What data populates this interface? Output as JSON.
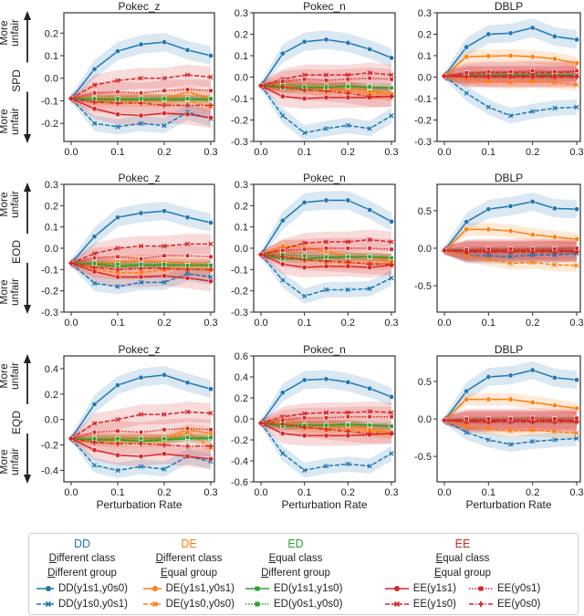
{
  "chart_data": {
    "type": "line",
    "x": [
      0.0,
      0.05,
      0.1,
      0.15,
      0.2,
      0.25,
      0.3
    ],
    "xlabel": "Perturbation Rate",
    "xticks": [
      "0.0",
      "0.1",
      "0.2",
      "0.3"
    ],
    "row_labels": [
      {
        "metric": "SPD",
        "up": "More unfair",
        "down": "More unfair"
      },
      {
        "metric": "EOD",
        "up": "More unfair",
        "down": "More unfair"
      },
      {
        "metric": "EQD",
        "up": "More unfair",
        "down": "More unfair"
      }
    ],
    "series_style": [
      {
        "key": "DD1",
        "color": "#1f77b4",
        "dash": "solid",
        "marker": "circle"
      },
      {
        "key": "DD2",
        "color": "#1f77b4",
        "dash": "dashed",
        "marker": "x"
      },
      {
        "key": "DE1",
        "color": "#ff7f0e",
        "dash": "solid",
        "marker": "circle"
      },
      {
        "key": "DE2",
        "color": "#ff7f0e",
        "dash": "dashed",
        "marker": "x"
      },
      {
        "key": "ED1",
        "color": "#2ca02c",
        "dash": "solid",
        "marker": "square"
      },
      {
        "key": "ED2",
        "color": "#2ca02c",
        "dash": "dotted",
        "marker": "square"
      },
      {
        "key": "EE11",
        "color": "#d62728",
        "dash": "solid",
        "marker": "circle"
      },
      {
        "key": "EE10",
        "color": "#d62728",
        "dash": "dashed",
        "marker": "x"
      },
      {
        "key": "EE01",
        "color": "#d62728",
        "dash": "dotted",
        "marker": "square"
      },
      {
        "key": "EE00",
        "color": "#d62728",
        "dash": "dashdot",
        "marker": "plus"
      }
    ],
    "panels": [
      {
        "title": "Pokec_z",
        "ylim": [
          -0.28,
          0.29
        ],
        "yticks": [
          "-0.2",
          "-0.1",
          "0.0",
          "0.1",
          "0.2"
        ],
        "series": [
          [
            -0.09,
            0.04,
            0.12,
            0.15,
            0.16,
            0.125,
            0.1
          ],
          [
            -0.09,
            -0.2,
            -0.215,
            -0.2,
            -0.21,
            -0.15,
            -0.18
          ],
          [
            -0.09,
            -0.09,
            -0.09,
            -0.095,
            -0.095,
            -0.06,
            -0.09
          ],
          [
            -0.09,
            -0.1,
            -0.1,
            -0.1,
            -0.1,
            -0.1,
            -0.125
          ],
          [
            -0.09,
            -0.095,
            -0.095,
            -0.095,
            -0.095,
            -0.095,
            -0.095
          ],
          [
            -0.09,
            -0.09,
            -0.09,
            -0.09,
            -0.09,
            -0.09,
            -0.09
          ],
          [
            -0.09,
            -0.135,
            -0.16,
            -0.165,
            -0.155,
            -0.16,
            -0.175
          ],
          [
            -0.09,
            -0.03,
            -0.01,
            0.0,
            0.0,
            0.015,
            0.005
          ],
          [
            -0.09,
            -0.065,
            -0.06,
            -0.065,
            -0.055,
            -0.05,
            -0.055
          ],
          [
            -0.09,
            -0.105,
            -0.11,
            -0.11,
            -0.12,
            -0.12,
            -0.12
          ]
        ]
      },
      {
        "title": "Pokec_n",
        "ylim": [
          -0.3,
          0.3
        ],
        "yticks": [
          "-0.3",
          "-0.2",
          "-0.1",
          "0.0",
          "0.1",
          "0.2",
          "0.3"
        ],
        "series": [
          [
            -0.04,
            0.11,
            0.165,
            0.175,
            0.16,
            0.13,
            0.09
          ],
          [
            -0.04,
            -0.18,
            -0.26,
            -0.24,
            -0.225,
            -0.24,
            -0.18
          ],
          [
            -0.04,
            -0.04,
            -0.05,
            -0.055,
            -0.045,
            -0.065,
            -0.08
          ],
          [
            -0.04,
            -0.045,
            -0.05,
            -0.06,
            -0.065,
            -0.075,
            -0.08
          ],
          [
            -0.04,
            -0.05,
            -0.05,
            -0.05,
            -0.04,
            -0.05,
            -0.05
          ],
          [
            -0.04,
            -0.035,
            -0.045,
            -0.045,
            -0.045,
            -0.045,
            -0.05
          ],
          [
            -0.04,
            -0.09,
            -0.1,
            -0.095,
            -0.095,
            -0.095,
            -0.09
          ],
          [
            -0.04,
            -0.01,
            0.01,
            0.01,
            0.01,
            0.02,
            0.01
          ],
          [
            -0.04,
            -0.02,
            -0.01,
            -0.015,
            -0.01,
            -0.005,
            -0.01
          ],
          [
            -0.04,
            -0.045,
            -0.06,
            -0.065,
            -0.075,
            -0.09,
            -0.09
          ]
        ]
      },
      {
        "title": "DBLP",
        "ylim": [
          -0.3,
          0.3
        ],
        "yticks": [
          "-0.3",
          "-0.2",
          "-0.1",
          "0.0",
          "0.1",
          "0.2",
          "0.3"
        ],
        "series": [
          [
            0.005,
            0.14,
            0.2,
            0.205,
            0.23,
            0.19,
            0.175
          ],
          [
            0.005,
            -0.075,
            -0.14,
            -0.18,
            -0.16,
            -0.145,
            -0.14
          ],
          [
            0.005,
            0.095,
            0.098,
            0.1,
            0.095,
            0.085,
            0.065
          ],
          [
            0.005,
            -0.01,
            -0.02,
            -0.025,
            -0.02,
            -0.025,
            -0.035
          ],
          [
            0.005,
            0.005,
            0.01,
            0.01,
            0.01,
            0.01,
            0.01
          ],
          [
            0.005,
            0.01,
            0.01,
            0.01,
            0.01,
            0.01,
            0.01
          ],
          [
            0.005,
            0.005,
            0.005,
            0.005,
            0.005,
            0.005,
            0.005
          ],
          [
            0.005,
            0.015,
            0.02,
            0.02,
            0.02,
            0.02,
            0.025
          ],
          [
            0.005,
            0.02,
            0.025,
            0.025,
            0.03,
            0.025,
            0.03
          ],
          [
            0.005,
            0,
            0,
            0,
            0,
            0,
            0
          ]
        ]
      },
      {
        "title": "Pokec_z",
        "ylim": [
          -0.3,
          0.3
        ],
        "yticks": [
          "-0.3",
          "-0.2",
          "-0.1",
          "0.0",
          "0.1",
          "0.2",
          "0.3"
        ],
        "series": [
          [
            -0.07,
            0.055,
            0.145,
            0.165,
            0.175,
            0.145,
            0.12
          ],
          [
            -0.07,
            -0.165,
            -0.18,
            -0.16,
            -0.16,
            -0.12,
            -0.135
          ],
          [
            -0.07,
            -0.07,
            -0.065,
            -0.06,
            -0.065,
            -0.07,
            -0.08
          ],
          [
            -0.07,
            -0.1,
            -0.115,
            -0.115,
            -0.1,
            -0.1,
            -0.1
          ],
          [
            -0.07,
            -0.075,
            -0.085,
            -0.08,
            -0.08,
            -0.08,
            -0.08
          ],
          [
            -0.07,
            -0.07,
            -0.075,
            -0.075,
            -0.075,
            -0.08,
            -0.08
          ],
          [
            -0.07,
            -0.11,
            -0.135,
            -0.135,
            -0.13,
            -0.14,
            -0.155
          ],
          [
            -0.07,
            -0.025,
            0,
            0.01,
            0.01,
            0.02,
            0.02
          ],
          [
            -0.07,
            -0.045,
            -0.04,
            -0.05,
            -0.035,
            -0.035,
            -0.04
          ],
          [
            -0.07,
            -0.09,
            -0.1,
            -0.095,
            -0.095,
            -0.1,
            -0.1
          ]
        ]
      },
      {
        "title": "Pokec_n",
        "ylim": [
          -0.3,
          0.3
        ],
        "yticks": [
          "-0.3",
          "-0.2",
          "-0.1",
          "0.0",
          "0.1",
          "0.2",
          "0.3"
        ],
        "series": [
          [
            -0.03,
            0.13,
            0.215,
            0.225,
            0.225,
            0.18,
            0.125
          ],
          [
            -0.03,
            -0.15,
            -0.225,
            -0.195,
            -0.195,
            -0.19,
            -0.14
          ],
          [
            -0.03,
            0.01,
            0.005,
            -0.015,
            -0.04,
            -0.04,
            -0.06
          ],
          [
            -0.03,
            -0.03,
            -0.055,
            -0.065,
            -0.07,
            -0.07,
            -0.07
          ],
          [
            -0.03,
            -0.05,
            -0.05,
            -0.045,
            -0.04,
            -0.04,
            -0.045
          ],
          [
            -0.03,
            -0.03,
            -0.035,
            -0.04,
            -0.04,
            -0.04,
            -0.045
          ],
          [
            -0.03,
            -0.075,
            -0.09,
            -0.085,
            -0.085,
            -0.09,
            -0.08
          ],
          [
            -0.03,
            -0.005,
            0.025,
            0.03,
            0.03,
            0.04,
            0.03
          ],
          [
            -0.03,
            -0.01,
            -0.005,
            0,
            0,
            0,
            -0.005
          ],
          [
            -0.03,
            -0.04,
            -0.055,
            -0.06,
            -0.065,
            -0.075,
            -0.075
          ]
        ]
      },
      {
        "title": "DBLP",
        "ylim": [
          -0.85,
          0.85
        ],
        "yticks": [
          "-0.5",
          "0.0",
          "0.5"
        ],
        "series": [
          [
            -0.03,
            0.35,
            0.52,
            0.56,
            0.62,
            0.53,
            0.52
          ],
          [
            -0.03,
            -0.1,
            -0.1,
            -0.11,
            -0.09,
            -0.09,
            -0.07
          ],
          [
            -0.03,
            0.25,
            0.25,
            0.23,
            0.18,
            0.15,
            0.12
          ],
          [
            -0.03,
            -0.1,
            -0.15,
            -0.2,
            -0.19,
            -0.22,
            -0.23
          ],
          [
            -0.03,
            -0.03,
            -0.03,
            -0.03,
            -0.03,
            -0.03,
            -0.03
          ],
          [
            -0.03,
            -0.03,
            -0.03,
            -0.03,
            -0.03,
            -0.03,
            -0.03
          ],
          [
            -0.03,
            -0.03,
            -0.03,
            -0.03,
            -0.03,
            -0.03,
            -0.03
          ],
          [
            -0.03,
            -0.04,
            -0.04,
            -0.04,
            -0.04,
            -0.04,
            -0.04
          ],
          [
            -0.03,
            -0.02,
            -0.01,
            -0.01,
            -0.01,
            -0.01,
            0
          ],
          [
            -0.03,
            -0.05,
            -0.05,
            -0.05,
            -0.05,
            -0.05,
            -0.05
          ]
        ]
      },
      {
        "title": "Pokec_z",
        "ylim": [
          -0.49,
          0.5
        ],
        "yticks": [
          "-0.4",
          "-0.2",
          "0.0",
          "0.2",
          "0.4"
        ],
        "series": [
          [
            -0.15,
            0.12,
            0.27,
            0.33,
            0.35,
            0.29,
            0.24
          ],
          [
            -0.15,
            -0.36,
            -0.4,
            -0.37,
            -0.39,
            -0.29,
            -0.33
          ],
          [
            -0.15,
            -0.15,
            -0.15,
            -0.15,
            -0.15,
            -0.08,
            -0.11
          ],
          [
            -0.15,
            -0.16,
            -0.17,
            -0.17,
            -0.17,
            -0.1,
            -0.22
          ],
          [
            -0.15,
            -0.16,
            -0.16,
            -0.17,
            -0.16,
            -0.15,
            -0.15
          ],
          [
            -0.15,
            -0.15,
            -0.15,
            -0.15,
            -0.15,
            -0.14,
            -0.14
          ],
          [
            -0.15,
            -0.24,
            -0.28,
            -0.29,
            -0.27,
            -0.29,
            -0.31
          ],
          [
            -0.15,
            -0.03,
            0.0,
            0.04,
            0.04,
            0.06,
            0.05
          ],
          [
            -0.15,
            -0.1,
            -0.09,
            -0.1,
            -0.08,
            -0.07,
            -0.08
          ],
          [
            -0.15,
            -0.18,
            -0.19,
            -0.19,
            -0.2,
            -0.21,
            -0.21
          ]
        ]
      },
      {
        "title": "Pokec_n",
        "ylim": [
          -0.6,
          0.6
        ],
        "yticks": [
          "-0.6",
          "-0.4",
          "-0.2",
          "0.0",
          "0.2",
          "0.4",
          "0.6"
        ],
        "series": [
          [
            -0.04,
            0.25,
            0.37,
            0.38,
            0.35,
            0.29,
            0.21
          ],
          [
            -0.04,
            -0.33,
            -0.49,
            -0.45,
            -0.43,
            -0.45,
            -0.33
          ],
          [
            -0.04,
            -0.04,
            -0.06,
            -0.07,
            -0.06,
            -0.1,
            -0.13
          ],
          [
            -0.04,
            -0.05,
            -0.08,
            -0.1,
            -0.1,
            -0.12,
            -0.13
          ],
          [
            -0.04,
            -0.07,
            -0.06,
            -0.06,
            -0.05,
            -0.06,
            -0.07
          ],
          [
            -0.04,
            -0.05,
            -0.06,
            -0.06,
            -0.06,
            -0.06,
            -0.07
          ],
          [
            -0.04,
            -0.14,
            -0.16,
            -0.16,
            -0.16,
            -0.15,
            -0.14
          ],
          [
            -0.04,
            0.02,
            0.05,
            0.06,
            0.06,
            0.07,
            0.06
          ],
          [
            -0.04,
            -0.01,
            0.01,
            0.01,
            0.02,
            0.02,
            0.02
          ],
          [
            -0.04,
            -0.05,
            -0.08,
            -0.1,
            -0.12,
            -0.14,
            -0.14
          ]
        ]
      },
      {
        "title": "DBLP",
        "ylim": [
          -0.84,
          0.84
        ],
        "yticks": [
          "-0.5",
          "0.0",
          "0.5"
        ],
        "series": [
          [
            -0.02,
            0.37,
            0.56,
            0.58,
            0.65,
            0.55,
            0.52
          ],
          [
            -0.02,
            -0.18,
            -0.28,
            -0.34,
            -0.3,
            -0.28,
            -0.26
          ],
          [
            -0.02,
            0.26,
            0.26,
            0.26,
            0.22,
            0.18,
            0.14
          ],
          [
            -0.02,
            -0.1,
            -0.13,
            -0.16,
            -0.15,
            -0.17,
            -0.19
          ],
          [
            -0.02,
            -0.02,
            -0.02,
            -0.02,
            -0.02,
            -0.02,
            -0.02
          ],
          [
            -0.02,
            -0.02,
            -0.02,
            -0.02,
            -0.02,
            -0.02,
            -0.02
          ],
          [
            -0.02,
            -0.02,
            -0.02,
            -0.02,
            -0.02,
            -0.02,
            -0.02
          ],
          [
            -0.02,
            -0.03,
            -0.03,
            -0.03,
            -0.03,
            -0.03,
            -0.03
          ],
          [
            -0.02,
            0,
            0,
            0,
            0.01,
            0,
            0.01
          ],
          [
            -0.02,
            -0.04,
            -0.04,
            -0.04,
            -0.04,
            -0.04,
            -0.04
          ]
        ]
      }
    ]
  },
  "legend": {
    "groups": [
      {
        "title": "DD",
        "color": "#1f77b4",
        "line1": "Different  class",
        "line2": "Different  group",
        "entries": [
          "DD(y1s1,y0s0)",
          "DD(y1s0,y0s1)"
        ]
      },
      {
        "title": "DE",
        "color": "#ff7f0e",
        "line1": "Different  class",
        "line2": "Equal  group",
        "entries": [
          "DE(y1s1,y0s1)",
          "DE(y1s0,y0s0)"
        ]
      },
      {
        "title": "ED",
        "color": "#2ca02c",
        "line1": "Equal  class",
        "line2": "Different  group",
        "entries": [
          "ED(y1s1,y1s0)",
          "ED(y0s1,y0s0)"
        ]
      },
      {
        "title": "EE",
        "color": "#d62728",
        "line1": "Equal  class",
        "line2": "Equal  group",
        "entries": [
          "EE(y1s1)",
          "EE(y1s0)",
          "EE(y0s1)",
          "EE(y0s0)"
        ]
      }
    ]
  }
}
